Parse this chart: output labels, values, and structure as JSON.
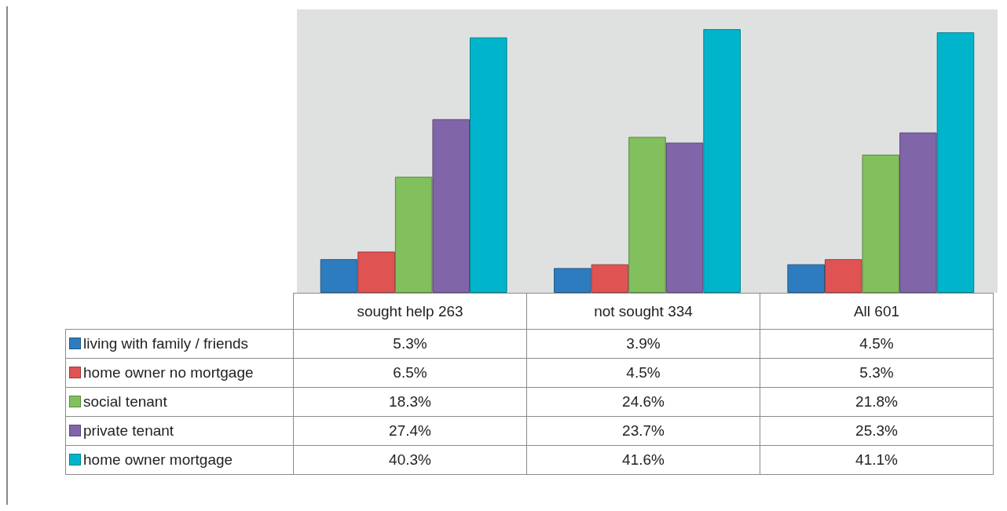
{
  "chart_data": {
    "type": "bar",
    "categories": [
      "sought help 263",
      "not sought 334",
      "All 601"
    ],
    "legend": "bottom",
    "series": [
      {
        "name": "living with family / friends",
        "color": "#2e7cc0",
        "values": [
          5.3,
          3.9,
          4.5
        ],
        "value_labels": [
          "5.3%",
          "3.9%",
          "4.5%"
        ]
      },
      {
        "name": "home owner no mortgage",
        "color": "#e05353",
        "values": [
          6.5,
          4.5,
          5.3
        ],
        "value_labels": [
          "6.5%",
          "4.5%",
          "5.3%"
        ]
      },
      {
        "name": "social tenant",
        "color": "#82c05e",
        "values": [
          18.3,
          24.6,
          21.8
        ],
        "value_labels": [
          "18.3%",
          "24.6%",
          "21.8%"
        ]
      },
      {
        "name": "private tenant",
        "color": "#8065a8",
        "values": [
          27.4,
          23.7,
          25.3
        ],
        "value_labels": [
          "27.4%",
          "23.7%",
          "25.3%"
        ]
      },
      {
        "name": "home owner mortgage",
        "color": "#00b5cb",
        "values": [
          40.3,
          41.6,
          41.1
        ],
        "value_labels": [
          "40.3%",
          "41.6%",
          "41.1%"
        ]
      }
    ]
  }
}
